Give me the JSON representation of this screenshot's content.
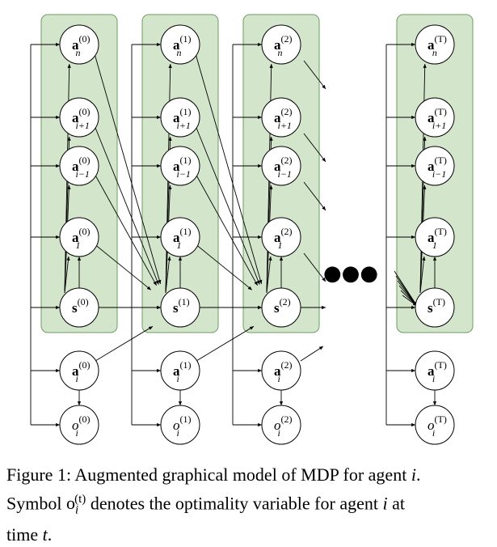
{
  "caption": {
    "line1": "Figure 1: Augmented graphical model of MDP for agent ",
    "agent_var": "i",
    "line2_pre": "Symbol ",
    "symbol_base": "o",
    "symbol_sub": "i",
    "symbol_sup": "(t)",
    "line2_post": " denotes the optimality variable for agent ",
    "line3_pre": "time ",
    "time_var": "t"
  },
  "columns": [
    {
      "id": "t0",
      "time_label": "(0)",
      "edges_out": true
    },
    {
      "id": "t1",
      "time_label": "(1)",
      "edges_out": true
    },
    {
      "id": "t2",
      "time_label": "(2)",
      "edges_out": true
    },
    {
      "id": "tT",
      "time_label": "(T)",
      "edges_out": false
    }
  ],
  "rows": [
    {
      "key": "an",
      "base": "a",
      "sub": "n",
      "bold": true,
      "in_group": true
    },
    {
      "key": "ai1p",
      "base": "a",
      "sub": "i+1",
      "bold": true,
      "in_group": true
    },
    {
      "key": "ai1m",
      "base": "a",
      "sub": "i−1",
      "bold": true,
      "in_group": true
    },
    {
      "key": "a1",
      "base": "a",
      "sub": "1",
      "bold": true,
      "in_group": true
    },
    {
      "key": "s",
      "base": "s",
      "sub": "",
      "bold": true,
      "in_group": true
    },
    {
      "key": "ai",
      "base": "a",
      "sub": "i",
      "bold": true,
      "in_group": false
    },
    {
      "key": "oi",
      "base": "o",
      "sub": "i",
      "bold": false,
      "in_group": false
    }
  ],
  "ellipsis": "●●●",
  "colors": {
    "group_fill": "#d3e6cb",
    "group_stroke": "#6e9e5f",
    "node_fill": "#ffffff",
    "edge": "#000000"
  }
}
